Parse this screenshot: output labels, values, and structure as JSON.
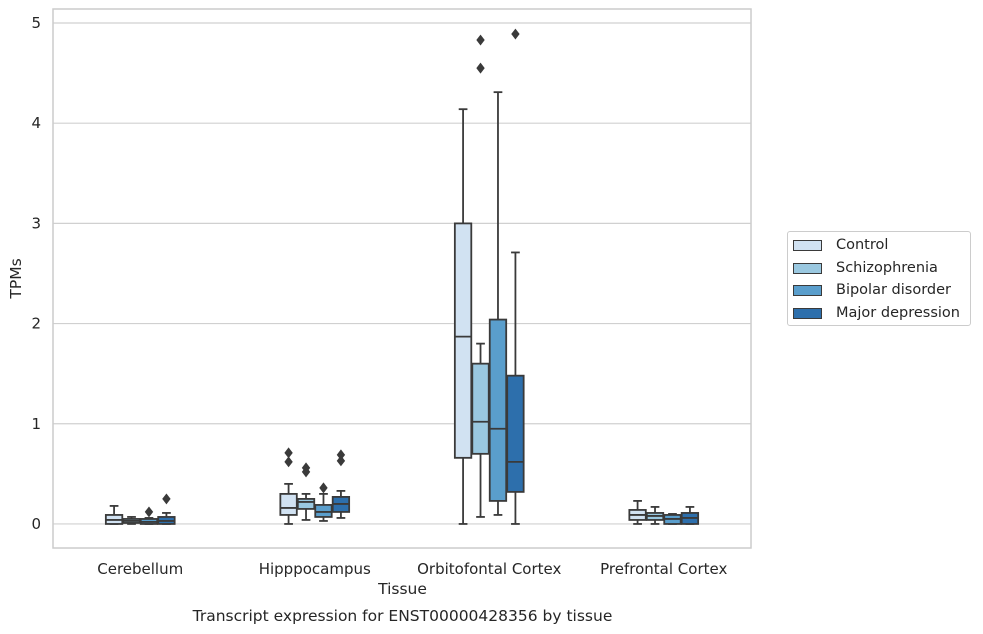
{
  "caption": "Transcript expression for ENST00000428356 by tissue",
  "chart_data": {
    "type": "box",
    "xlabel": "Tissue",
    "ylabel": "TPMs",
    "ylim": [
      -0.24,
      5.14
    ],
    "yticks": [
      0,
      1,
      2,
      3,
      4,
      5
    ],
    "grid": "horizontal",
    "legend_position": "right",
    "categories": [
      "Cerebellum",
      "Hipppocampus",
      "Orbitofontal Cortex",
      "Prefrontal Cortex"
    ],
    "series": [
      {
        "name": "Control",
        "color": "#d1e2f2",
        "boxes": [
          {
            "whislo": 0,
            "q1": 0.0,
            "med": 0.04,
            "q3": 0.09,
            "whishi": 0.18,
            "fliers": []
          },
          {
            "whislo": 0,
            "q1": 0.09,
            "med": 0.16,
            "q3": 0.3,
            "whishi": 0.4,
            "fliers": [
              0.62,
              0.71
            ]
          },
          {
            "whislo": 0,
            "q1": 0.66,
            "med": 1.87,
            "q3": 3.0,
            "whishi": 4.14,
            "fliers": []
          },
          {
            "whislo": 0,
            "q1": 0.04,
            "med": 0.09,
            "q3": 0.14,
            "whishi": 0.23,
            "fliers": []
          }
        ]
      },
      {
        "name": "Schizophrenia",
        "color": "#9ac8e0",
        "boxes": [
          {
            "whislo": 0,
            "q1": 0.01,
            "med": 0.03,
            "q3": 0.05,
            "whishi": 0.07,
            "fliers": []
          },
          {
            "whislo": 0.04,
            "q1": 0.15,
            "med": 0.22,
            "q3": 0.25,
            "whishi": 0.3,
            "fliers": [
              0.52,
              0.56
            ]
          },
          {
            "whislo": 0.07,
            "q1": 0.7,
            "med": 1.02,
            "q3": 1.6,
            "whishi": 1.8,
            "fliers": [
              4.55,
              4.83
            ]
          },
          {
            "whislo": 0,
            "q1": 0.04,
            "med": 0.08,
            "q3": 0.11,
            "whishi": 0.17,
            "fliers": []
          }
        ]
      },
      {
        "name": "Bipolar disorder",
        "color": "#5a9ecc",
        "boxes": [
          {
            "whislo": 0,
            "q1": 0.0,
            "med": 0.02,
            "q3": 0.05,
            "whishi": 0.06,
            "fliers": [
              0.12
            ]
          },
          {
            "whislo": 0.03,
            "q1": 0.07,
            "med": 0.12,
            "q3": 0.19,
            "whishi": 0.3,
            "fliers": [
              0.36
            ]
          },
          {
            "whislo": 0.09,
            "q1": 0.23,
            "med": 0.95,
            "q3": 2.04,
            "whishi": 4.31,
            "fliers": []
          },
          {
            "whislo": 0,
            "q1": 0.0,
            "med": 0.05,
            "q3": 0.09,
            "whishi": 0.1,
            "fliers": []
          }
        ]
      },
      {
        "name": "Major depression",
        "color": "#2d6fac",
        "boxes": [
          {
            "whislo": 0,
            "q1": 0.0,
            "med": 0.03,
            "q3": 0.07,
            "whishi": 0.11,
            "fliers": [
              0.25
            ]
          },
          {
            "whislo": 0.06,
            "q1": 0.12,
            "med": 0.2,
            "q3": 0.27,
            "whishi": 0.33,
            "fliers": [
              0.63,
              0.69
            ]
          },
          {
            "whislo": 0,
            "q1": 0.32,
            "med": 0.62,
            "q3": 1.48,
            "whishi": 2.71,
            "fliers": [
              4.89
            ]
          },
          {
            "whislo": 0,
            "q1": 0.0,
            "med": 0.06,
            "q3": 0.11,
            "whishi": 0.17,
            "fliers": []
          }
        ]
      }
    ]
  }
}
